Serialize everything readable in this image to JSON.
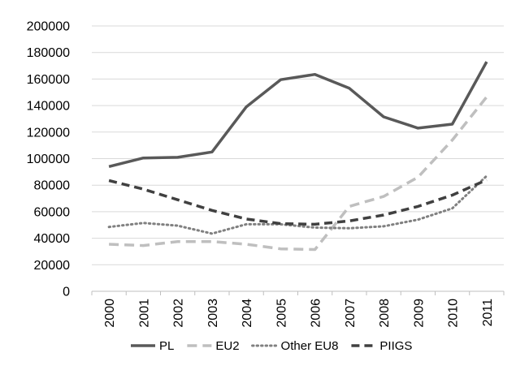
{
  "chart_data": {
    "type": "line",
    "title": "",
    "xlabel": "",
    "ylabel": "",
    "categories": [
      "2000",
      "2001",
      "2002",
      "2003",
      "2004",
      "2005",
      "2006",
      "2007",
      "2008",
      "2009",
      "2010",
      "2011"
    ],
    "ylim": [
      0,
      200000
    ],
    "yticks": [
      "0",
      "20000",
      "40000",
      "60000",
      "80000",
      "100000",
      "120000",
      "140000",
      "160000",
      "180000",
      "200000"
    ],
    "grid": true,
    "legend_position": "bottom",
    "series": [
      {
        "name": "PL",
        "color": "#595959",
        "style": "solid",
        "values": [
          94000,
          100500,
          101000,
          105000,
          139000,
          159500,
          163500,
          153000,
          131500,
          123000,
          126000,
          173000
        ]
      },
      {
        "name": "EU2",
        "color": "#bfbfbf",
        "style": "dashed",
        "values": [
          35500,
          34500,
          37500,
          37500,
          35500,
          32000,
          31500,
          64000,
          71500,
          86000,
          114000,
          146500
        ]
      },
      {
        "name": "Other EU8",
        "color": "#808080",
        "style": "dotted",
        "values": [
          48500,
          51500,
          49500,
          43500,
          50500,
          50500,
          48000,
          47500,
          49000,
          54000,
          62500,
          87000
        ]
      },
      {
        "name": "PIIGS",
        "color": "#404040",
        "style": "dashed",
        "values": [
          83500,
          77000,
          69000,
          61000,
          54500,
          51000,
          50500,
          53000,
          57500,
          64000,
          72500,
          84000
        ]
      }
    ]
  }
}
